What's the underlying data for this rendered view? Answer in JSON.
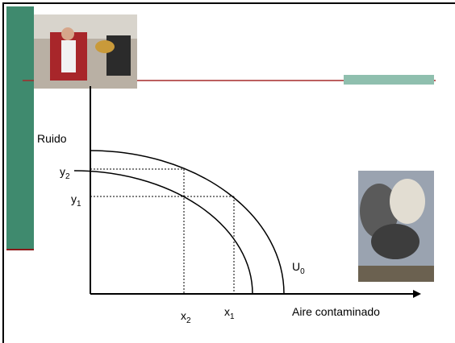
{
  "axis_labels": {
    "y": "Ruido",
    "x": "Aire contaminado"
  },
  "points": {
    "y2": {
      "base": "y",
      "sub": "2"
    },
    "y1": {
      "base": "y",
      "sub": "1"
    },
    "x2": {
      "base": "x",
      "sub": "2"
    },
    "x1": {
      "base": "x",
      "sub": "1"
    },
    "u0": {
      "base": "U",
      "sub": "0"
    }
  }
}
